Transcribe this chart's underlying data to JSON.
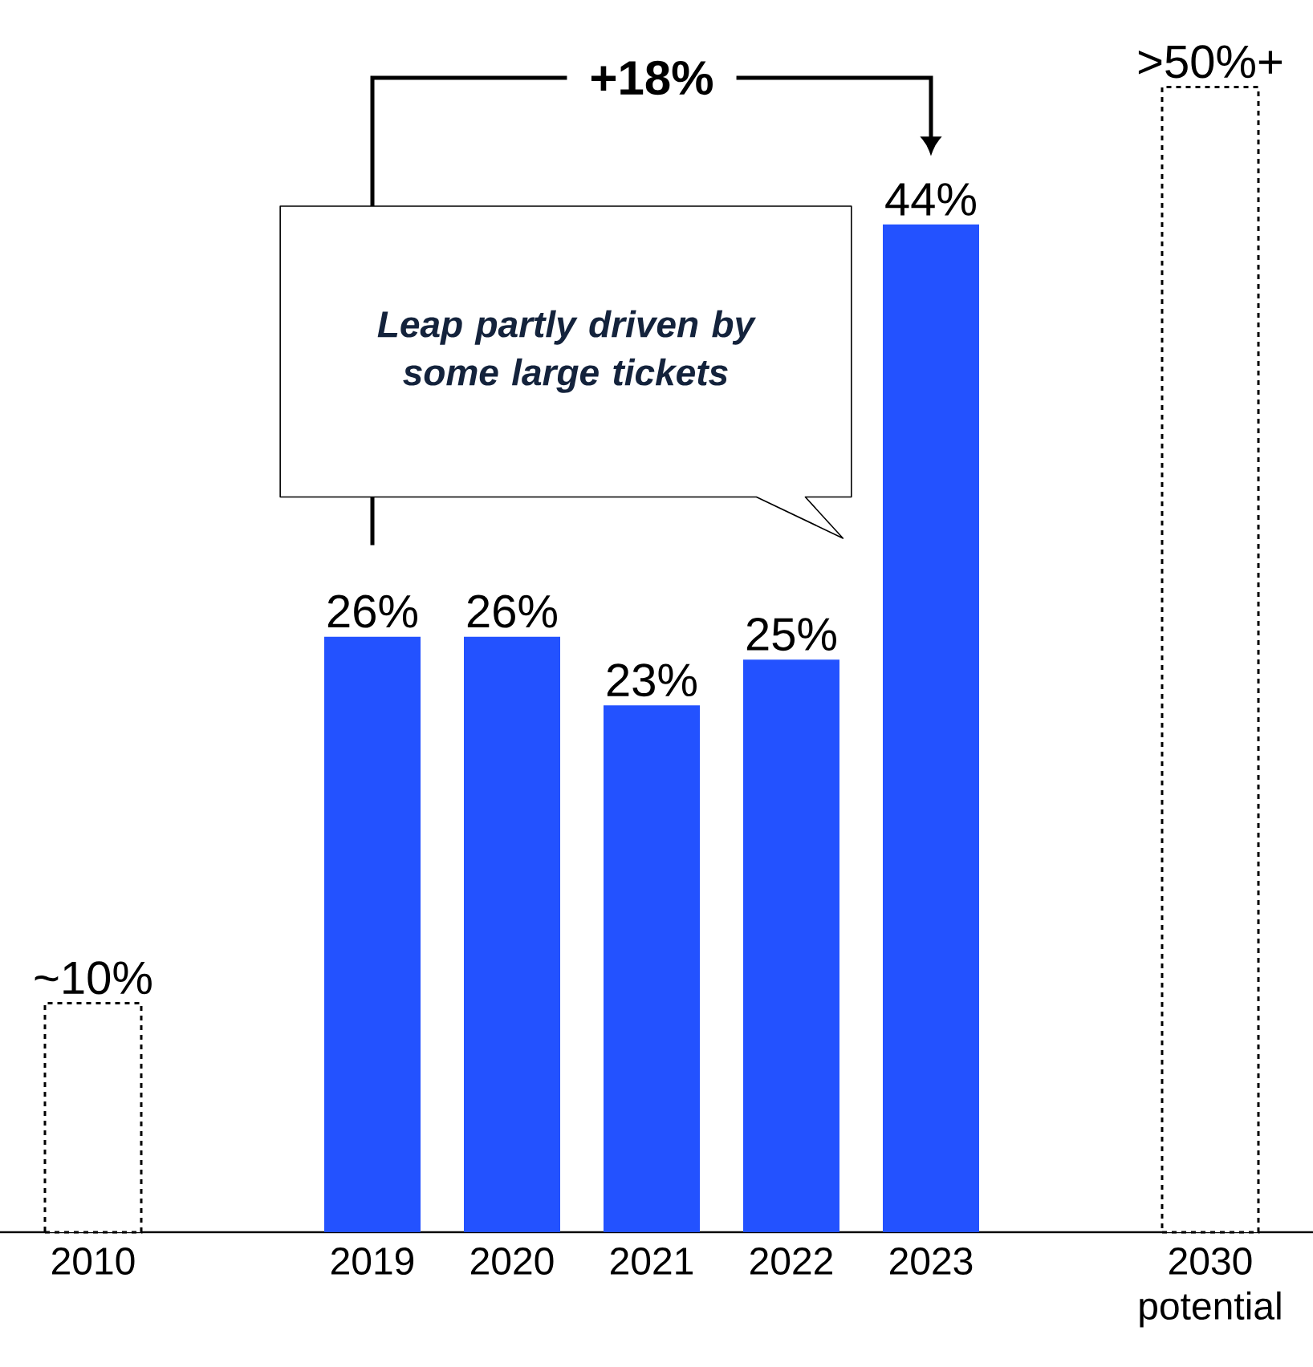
{
  "chart_data": {
    "type": "bar",
    "categories": [
      "2010",
      null,
      "2019",
      "2020",
      "2021",
      "2022",
      "2023",
      null,
      "2030 potential"
    ],
    "series": [
      {
        "color": "#2352ff",
        "values": [
          null,
          null,
          26,
          26,
          23,
          25,
          44,
          null,
          null
        ],
        "value_labels": [
          null,
          null,
          "26%",
          "26%",
          "23%",
          "25%",
          "44%",
          null,
          null
        ]
      },
      {
        "color": "#ffffff",
        "line_style": "dashed",
        "values": [
          10,
          null,
          null,
          null,
          null,
          null,
          null,
          null,
          50
        ],
        "value_labels": [
          "~10%",
          null,
          null,
          null,
          null,
          null,
          null,
          null,
          ">50%+"
        ]
      }
    ],
    "ylim": [
      0,
      50
    ],
    "tick_labels": "x",
    "annotations": [
      "+18%",
      "Leap partly driven by some large tickets"
    ]
  }
}
